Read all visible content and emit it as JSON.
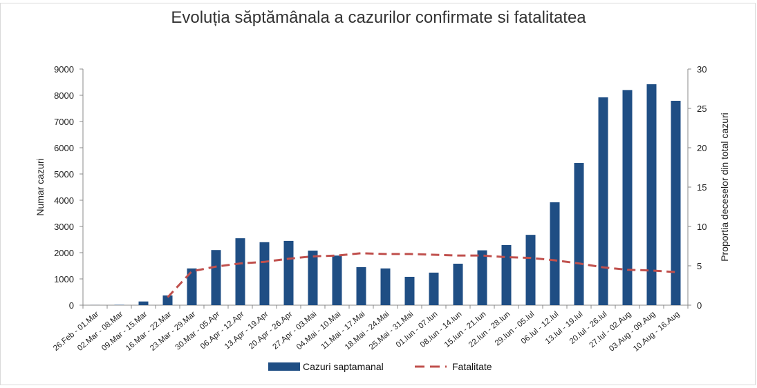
{
  "chart_data": {
    "type": "bar",
    "title": "Evoluția săptămânala a cazurilor confirmate si fatalitatea",
    "ylabel": "Numar cazuri",
    "y2label": "Proportia deceselor din total cazuri",
    "ylim": [
      0,
      9000
    ],
    "y2lim": [
      0,
      30
    ],
    "yticks": [
      "0",
      "1000",
      "2000",
      "3000",
      "4000",
      "5000",
      "6000",
      "7000",
      "8000",
      "9000"
    ],
    "y2ticks": [
      "0",
      "5",
      "10",
      "15",
      "20",
      "25",
      "30"
    ],
    "grid": false,
    "legend_position": "bottom",
    "categories": [
      "26.Feb - 01.Mar",
      "02.Mar - 08.Mar",
      "09.Mar - 15.Mar",
      "16.Mar - 22.Mar",
      "23.Mar - 29.Mar",
      "30.Mar - 05.Apr",
      "06.Apr - 12.Apr",
      "13.Apr - 19.Apr",
      "20.Apr - 26.Apr",
      "27.Apr - 03.Mai",
      "04.Mai - 10.Mai",
      "11.Mai - 17.Mai",
      "18.Mai - 24.Mai",
      "25.Mai - 31.Mai",
      "01.Iun - 07.Iun",
      "08.Iun - 14.Iun",
      "15.Iun - 21.Iun",
      "22.Iun - 28.Iun",
      "29.Iun - 05.Iul",
      "06.Iul - 12.Iul",
      "13.Iul - 19.Iul",
      "20.Iul - 26.Iul",
      "27.Iul - 02.Aug",
      "03.Aug - 09.Aug",
      "10.Aug - 16.Aug"
    ],
    "series": [
      {
        "name": "Cazuri saptamanal",
        "type": "bar",
        "axis": "left",
        "color": "#1f4e84",
        "values": [
          3,
          12,
          140,
          370,
          1400,
          2100,
          2550,
          2400,
          2450,
          2080,
          1890,
          1450,
          1400,
          1080,
          1240,
          1580,
          2090,
          2290,
          2680,
          3920,
          5420,
          7920,
          8200,
          8420,
          7790
        ]
      },
      {
        "name": "Fatalitate",
        "type": "line",
        "style": "dashed",
        "axis": "right",
        "color": "#c0504d",
        "values": [
          null,
          null,
          null,
          1.0,
          4.3,
          4.9,
          5.3,
          5.5,
          5.9,
          6.2,
          6.3,
          6.6,
          6.5,
          6.5,
          6.4,
          6.3,
          6.3,
          6.1,
          6.0,
          5.7,
          5.3,
          4.8,
          4.5,
          4.4,
          4.2
        ]
      }
    ]
  }
}
